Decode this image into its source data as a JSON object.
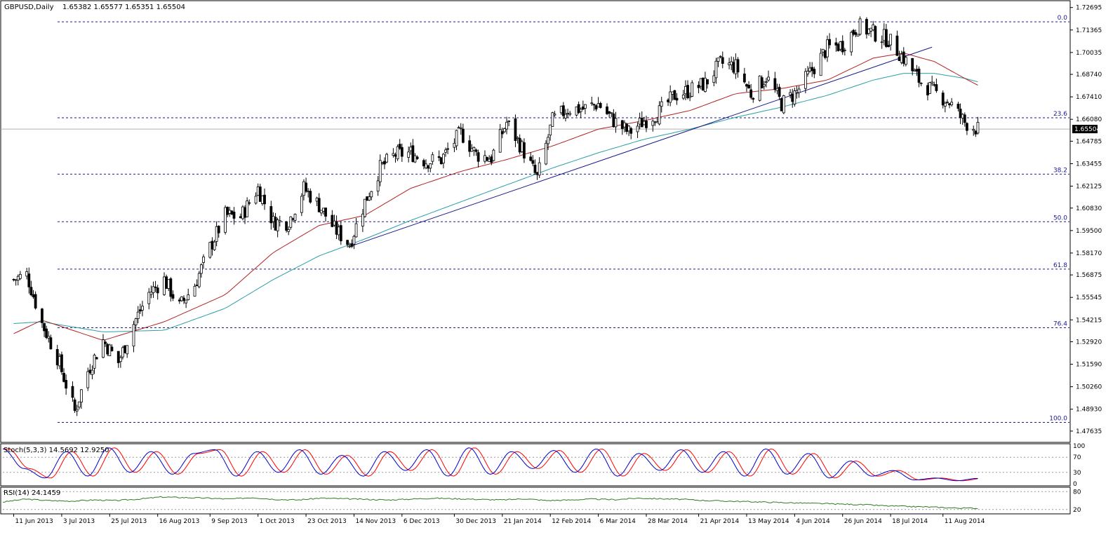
{
  "header": {
    "symbol_label": "GBPUSD,Daily",
    "ohlc_label": "1.65382 1.65577 1.65351 1.65504"
  },
  "current_price_label": "1.65504",
  "fib_levels": [
    {
      "label": "0.0",
      "price": 1.7185
    },
    {
      "label": "23.6",
      "price": 1.6617
    },
    {
      "label": "38.2",
      "price": 1.6284
    },
    {
      "label": "50.0",
      "price": 1.6002
    },
    {
      "label": "61.8",
      "price": 1.5722
    },
    {
      "label": "76.4",
      "price": 1.5375
    },
    {
      "label": "100.0",
      "price": 1.4815
    }
  ],
  "stoch": {
    "label": "Stoch(5,3,3) 14.5692 12.9250",
    "levels": [
      "100",
      "70",
      "30",
      "0"
    ]
  },
  "rsi": {
    "label": "RSI(14) 24.1459",
    "levels": [
      "80",
      "20"
    ]
  },
  "colors": {
    "candle": "#000000",
    "ma_fast": "#b22222",
    "ma_slow": "#2aa0a6",
    "trendline": "#1a1a8c",
    "fib_line": "#1a1a8c",
    "stoch_main": "#0000cc",
    "stoch_signal": "#ff0000",
    "rsi_line": "#2e7d1e"
  },
  "chart_data": {
    "type": "candlestick",
    "x_tick_labels": [
      "11 Jun 2013",
      "3 Jul 2013",
      "25 Jul 2013",
      "16 Aug 2013",
      "9 Sep 2013",
      "1 Oct 2013",
      "23 Oct 2013",
      "14 Nov 2013",
      "6 Dec 2013",
      "30 Dec 2013",
      "21 Jan 2014",
      "12 Feb 2014",
      "6 Mar 2014",
      "28 Mar 2014",
      "21 Apr 2014",
      "13 May 2014",
      "4 Jun 2014",
      "26 Jun 2014",
      "18 Jul 2014",
      "11 Aug 2014"
    ],
    "y_tick_labels": [
      "1.72695",
      "1.71365",
      "1.70035",
      "1.68740",
      "1.67410",
      "1.66080",
      "1.64785",
      "1.63455",
      "1.62125",
      "1.60830",
      "1.59500",
      "1.58170",
      "1.56875",
      "1.55545",
      "1.54215",
      "1.52920",
      "1.51590",
      "1.50260",
      "1.48930",
      "1.47635"
    ],
    "ylim": [
      1.473,
      1.7289
    ],
    "price_anchors": [
      {
        "date": "2013-06-11",
        "close": 1.566
      },
      {
        "date": "2013-06-17",
        "close": 1.569
      },
      {
        "date": "2013-06-24",
        "close": 1.54
      },
      {
        "date": "2013-07-01",
        "close": 1.52
      },
      {
        "date": "2013-07-09",
        "close": 1.488
      },
      {
        "date": "2013-07-15",
        "close": 1.512
      },
      {
        "date": "2013-07-22",
        "close": 1.53
      },
      {
        "date": "2013-07-29",
        "close": 1.517
      },
      {
        "date": "2013-08-05",
        "close": 1.54
      },
      {
        "date": "2013-08-12",
        "close": 1.558
      },
      {
        "date": "2013-08-19",
        "close": 1.566
      },
      {
        "date": "2013-08-26",
        "close": 1.55
      },
      {
        "date": "2013-09-02",
        "close": 1.563
      },
      {
        "date": "2013-09-09",
        "close": 1.585
      },
      {
        "date": "2013-09-16",
        "close": 1.604
      },
      {
        "date": "2013-09-23",
        "close": 1.603
      },
      {
        "date": "2013-10-01",
        "close": 1.62
      },
      {
        "date": "2013-10-08",
        "close": 1.6
      },
      {
        "date": "2013-10-15",
        "close": 1.6
      },
      {
        "date": "2013-10-22",
        "close": 1.62
      },
      {
        "date": "2013-10-29",
        "close": 1.61
      },
      {
        "date": "2013-11-05",
        "close": 1.596
      },
      {
        "date": "2013-11-12",
        "close": 1.587
      },
      {
        "date": "2013-11-19",
        "close": 1.612
      },
      {
        "date": "2013-11-26",
        "close": 1.632
      },
      {
        "date": "2013-12-03",
        "close": 1.64
      },
      {
        "date": "2013-12-10",
        "close": 1.641
      },
      {
        "date": "2013-12-17",
        "close": 1.636
      },
      {
        "date": "2013-12-24",
        "close": 1.637
      },
      {
        "date": "2014-01-02",
        "close": 1.653
      },
      {
        "date": "2014-01-09",
        "close": 1.64
      },
      {
        "date": "2014-01-16",
        "close": 1.638
      },
      {
        "date": "2014-01-23",
        "close": 1.659
      },
      {
        "date": "2014-01-30",
        "close": 1.644
      },
      {
        "date": "2014-02-06",
        "close": 1.626
      },
      {
        "date": "2014-02-13",
        "close": 1.66
      },
      {
        "date": "2014-02-20",
        "close": 1.667
      },
      {
        "date": "2014-02-27",
        "close": 1.667
      },
      {
        "date": "2014-03-06",
        "close": 1.67
      },
      {
        "date": "2014-03-13",
        "close": 1.66
      },
      {
        "date": "2014-03-20",
        "close": 1.653
      },
      {
        "date": "2014-03-27",
        "close": 1.66
      },
      {
        "date": "2014-04-03",
        "close": 1.665
      },
      {
        "date": "2014-04-10",
        "close": 1.675
      },
      {
        "date": "2014-04-17",
        "close": 1.678
      },
      {
        "date": "2014-04-24",
        "close": 1.682
      },
      {
        "date": "2014-05-01",
        "close": 1.694
      },
      {
        "date": "2014-05-08",
        "close": 1.692
      },
      {
        "date": "2014-05-15",
        "close": 1.676
      },
      {
        "date": "2014-05-22",
        "close": 1.686
      },
      {
        "date": "2014-05-29",
        "close": 1.67
      },
      {
        "date": "2014-06-05",
        "close": 1.677
      },
      {
        "date": "2014-06-12",
        "close": 1.69
      },
      {
        "date": "2014-06-19",
        "close": 1.703
      },
      {
        "date": "2014-06-26",
        "close": 1.705
      },
      {
        "date": "2014-07-03",
        "close": 1.716
      },
      {
        "date": "2014-07-10",
        "close": 1.712
      },
      {
        "date": "2014-07-17",
        "close": 1.708
      },
      {
        "date": "2014-07-24",
        "close": 1.697
      },
      {
        "date": "2014-07-31",
        "close": 1.684
      },
      {
        "date": "2014-08-07",
        "close": 1.677
      },
      {
        "date": "2014-08-14",
        "close": 1.671
      },
      {
        "date": "2014-08-21",
        "close": 1.659
      },
      {
        "date": "2014-08-27",
        "close": 1.655
      }
    ],
    "ma_fast": [
      {
        "date": "2013-06-11",
        "value": 1.534
      },
      {
        "date": "2013-06-24",
        "value": 1.542
      },
      {
        "date": "2013-07-22",
        "value": 1.53
      },
      {
        "date": "2013-08-19",
        "value": 1.541
      },
      {
        "date": "2013-09-16",
        "value": 1.557
      },
      {
        "date": "2013-10-08",
        "value": 1.582
      },
      {
        "date": "2013-10-29",
        "value": 1.598
      },
      {
        "date": "2013-11-19",
        "value": 1.604
      },
      {
        "date": "2013-12-10",
        "value": 1.62
      },
      {
        "date": "2014-01-02",
        "value": 1.63
      },
      {
        "date": "2014-01-23",
        "value": 1.637
      },
      {
        "date": "2014-02-13",
        "value": 1.645
      },
      {
        "date": "2014-03-06",
        "value": 1.655
      },
      {
        "date": "2014-03-27",
        "value": 1.66
      },
      {
        "date": "2014-04-17",
        "value": 1.666
      },
      {
        "date": "2014-05-08",
        "value": 1.676
      },
      {
        "date": "2014-05-29",
        "value": 1.679
      },
      {
        "date": "2014-06-19",
        "value": 1.684
      },
      {
        "date": "2014-07-10",
        "value": 1.697
      },
      {
        "date": "2014-07-24",
        "value": 1.7
      },
      {
        "date": "2014-08-07",
        "value": 1.695
      },
      {
        "date": "2014-08-21",
        "value": 1.685
      },
      {
        "date": "2014-08-27",
        "value": 1.681
      }
    ],
    "ma_slow": [
      {
        "date": "2013-06-11",
        "value": 1.54
      },
      {
        "date": "2013-06-24",
        "value": 1.541
      },
      {
        "date": "2013-07-22",
        "value": 1.535
      },
      {
        "date": "2013-08-19",
        "value": 1.536
      },
      {
        "date": "2013-09-16",
        "value": 1.549
      },
      {
        "date": "2013-10-08",
        "value": 1.566
      },
      {
        "date": "2013-10-29",
        "value": 1.58
      },
      {
        "date": "2013-11-19",
        "value": 1.59
      },
      {
        "date": "2013-12-10",
        "value": 1.601
      },
      {
        "date": "2014-01-02",
        "value": 1.612
      },
      {
        "date": "2014-01-23",
        "value": 1.622
      },
      {
        "date": "2014-02-13",
        "value": 1.632
      },
      {
        "date": "2014-03-06",
        "value": 1.641
      },
      {
        "date": "2014-03-27",
        "value": 1.649
      },
      {
        "date": "2014-04-17",
        "value": 1.655
      },
      {
        "date": "2014-05-08",
        "value": 1.662
      },
      {
        "date": "2014-05-29",
        "value": 1.668
      },
      {
        "date": "2014-06-19",
        "value": 1.675
      },
      {
        "date": "2014-07-10",
        "value": 1.684
      },
      {
        "date": "2014-07-24",
        "value": 1.688
      },
      {
        "date": "2014-08-07",
        "value": 1.688
      },
      {
        "date": "2014-08-21",
        "value": 1.685
      },
      {
        "date": "2014-08-27",
        "value": 1.683
      }
    ],
    "trendline": [
      {
        "date": "2013-11-12",
        "value": 1.5855
      },
      {
        "date": "2014-08-06",
        "value": 1.7035
      }
    ],
    "stoch_anchors": [
      92,
      40,
      15,
      85,
      20,
      95,
      30,
      85,
      25,
      80,
      90,
      20,
      85,
      30,
      90,
      25,
      75,
      20,
      85,
      35,
      90,
      20,
      95,
      25,
      85,
      40,
      88,
      30,
      92,
      20,
      80,
      35,
      90,
      30,
      85,
      20,
      92,
      25,
      80,
      15,
      60,
      20,
      35,
      10,
      15,
      8,
      14
    ],
    "rsi_anchors": [
      45,
      55,
      50,
      48,
      52,
      50,
      55,
      62,
      60,
      58,
      55,
      60,
      54,
      52,
      58,
      56,
      54,
      52,
      55,
      58,
      56,
      54,
      52,
      56,
      50,
      52,
      55,
      53,
      58,
      56,
      54,
      50,
      48,
      46,
      44,
      42,
      40,
      38,
      36,
      32,
      30,
      28,
      25,
      24
    ]
  }
}
